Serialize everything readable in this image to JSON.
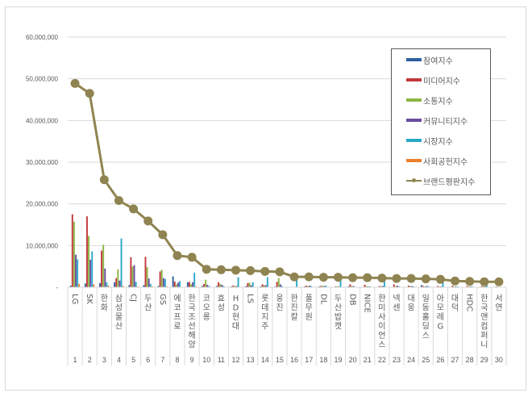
{
  "chart_data": {
    "type": "bar",
    "title": "",
    "xlabel": "",
    "ylabel": "",
    "ylim": [
      0,
      60000000
    ],
    "yticks": [
      "-",
      "10,000,000",
      "20,000,000",
      "30,000,000",
      "40,000,000",
      "50,000,000",
      "60,000,000"
    ],
    "grid": true,
    "legend_position": "upper right (inside)",
    "categories": [
      "LG",
      "SK",
      "한화",
      "삼성물산",
      "CJ",
      "두산",
      "GS",
      "에코프로",
      "한국조선해양",
      "코오롱",
      "효성",
      "HD현대",
      "LS",
      "롯데지주",
      "웅진",
      "한진칼",
      "풀무원",
      "DL",
      "두산밥캣",
      "DB",
      "NICE",
      "한미사이언스",
      "넥센",
      "대웅",
      "일동홀딩스",
      "아모레G",
      "대덕",
      "HDC",
      "한국앤컴퍼니",
      "서연"
    ],
    "ranks": [
      "1",
      "2",
      "3",
      "4",
      "5",
      "6",
      "7",
      "8",
      "9",
      "10",
      "11",
      "12",
      "13",
      "14",
      "15",
      "16",
      "17",
      "18",
      "19",
      "20",
      "21",
      "22",
      "23",
      "24",
      "25",
      "26",
      "27",
      "28",
      "29",
      "30"
    ],
    "series": [
      {
        "name": "참여지수",
        "type": "bar",
        "color": "#2e5f9e",
        "values": [
          400000,
          900000,
          1000000,
          1200000,
          500000,
          500000,
          300000,
          2600000,
          1200000,
          300000,
          300000,
          200000,
          300000,
          200000,
          200000,
          100000,
          200000,
          200000,
          100000,
          200000,
          100000,
          100000,
          100000,
          100000,
          500000,
          100000,
          100000,
          100000,
          100000,
          100000
        ]
      },
      {
        "name": "미디어지수",
        "type": "bar",
        "color": "#c0393b",
        "values": [
          17500000,
          17000000,
          8800000,
          2200000,
          7200000,
          7300000,
          3800000,
          1400000,
          1300000,
          800000,
          1200000,
          400000,
          1000000,
          700000,
          1300000,
          100000,
          400000,
          300000,
          200000,
          700000,
          600000,
          300000,
          700000,
          400000,
          300000,
          300000,
          400000,
          300000,
          300000,
          200000
        ]
      },
      {
        "name": "소통지수",
        "type": "bar",
        "color": "#8db543",
        "values": [
          15700000,
          12300000,
          10200000,
          4300000,
          5000000,
          4800000,
          4200000,
          700000,
          700000,
          1800000,
          800000,
          300000,
          1100000,
          500000,
          2200000,
          100000,
          300000,
          400000,
          200000,
          300000,
          300000,
          300000,
          300000,
          300000,
          200000,
          200000,
          200000,
          200000,
          200000,
          100000
        ]
      },
      {
        "name": "커뮤니티지수",
        "type": "bar",
        "color": "#6a4ca0",
        "values": [
          7800000,
          6600000,
          4500000,
          1600000,
          5300000,
          2100000,
          2200000,
          1100000,
          1200000,
          600000,
          600000,
          300000,
          500000,
          500000,
          700000,
          100000,
          400000,
          300000,
          200000,
          300000,
          200000,
          300000,
          400000,
          300000,
          300000,
          200000,
          200000,
          200000,
          200000,
          100000
        ]
      },
      {
        "name": "시장지수",
        "type": "bar",
        "color": "#2aa7c9",
        "values": [
          6700000,
          8600000,
          1200000,
          11700000,
          1300000,
          800000,
          2000000,
          1500000,
          3500000,
          300000,
          300000,
          2400000,
          1200000,
          2400000,
          300000,
          2600000,
          300000,
          400000,
          2400000,
          100000,
          200000,
          1500000,
          200000,
          200000,
          300000,
          1300000,
          200000,
          200000,
          600000,
          100000
        ]
      },
      {
        "name": "사회공헌지수",
        "type": "bar",
        "color": "#ec7f2c",
        "values": [
          800000,
          700000,
          400000,
          300000,
          200000,
          200000,
          200000,
          100000,
          200000,
          100000,
          100000,
          100000,
          100000,
          100000,
          100000,
          100000,
          100000,
          100000,
          100000,
          100000,
          100000,
          100000,
          100000,
          100000,
          100000,
          100000,
          100000,
          100000,
          100000,
          100000
        ]
      },
      {
        "name": "브랜드평판지수",
        "type": "line",
        "color": "#8f8451",
        "values": [
          48900000,
          46500000,
          25800000,
          20800000,
          18800000,
          15900000,
          12600000,
          7600000,
          7200000,
          4300000,
          4200000,
          4100000,
          4000000,
          3800000,
          3700000,
          2500000,
          2500000,
          2400000,
          2400000,
          2300000,
          2300000,
          2200000,
          2100000,
          2100000,
          2000000,
          1900000,
          1500000,
          1400000,
          1300000,
          1300000
        ]
      }
    ]
  },
  "legend": {
    "items": [
      {
        "label": "참여지수",
        "color": "#2e5f9e",
        "kind": "bar"
      },
      {
        "label": "미디어지수",
        "color": "#c0393b",
        "kind": "bar"
      },
      {
        "label": "소통지수",
        "color": "#8db543",
        "kind": "bar"
      },
      {
        "label": "커뮤니티지수",
        "color": "#6a4ca0",
        "kind": "bar"
      },
      {
        "label": "시장지수",
        "color": "#2aa7c9",
        "kind": "bar"
      },
      {
        "label": "사회공헌지수",
        "color": "#ec7f2c",
        "kind": "bar"
      },
      {
        "label": "브랜드평판지수",
        "color": "#8f8451",
        "kind": "line"
      }
    ]
  }
}
